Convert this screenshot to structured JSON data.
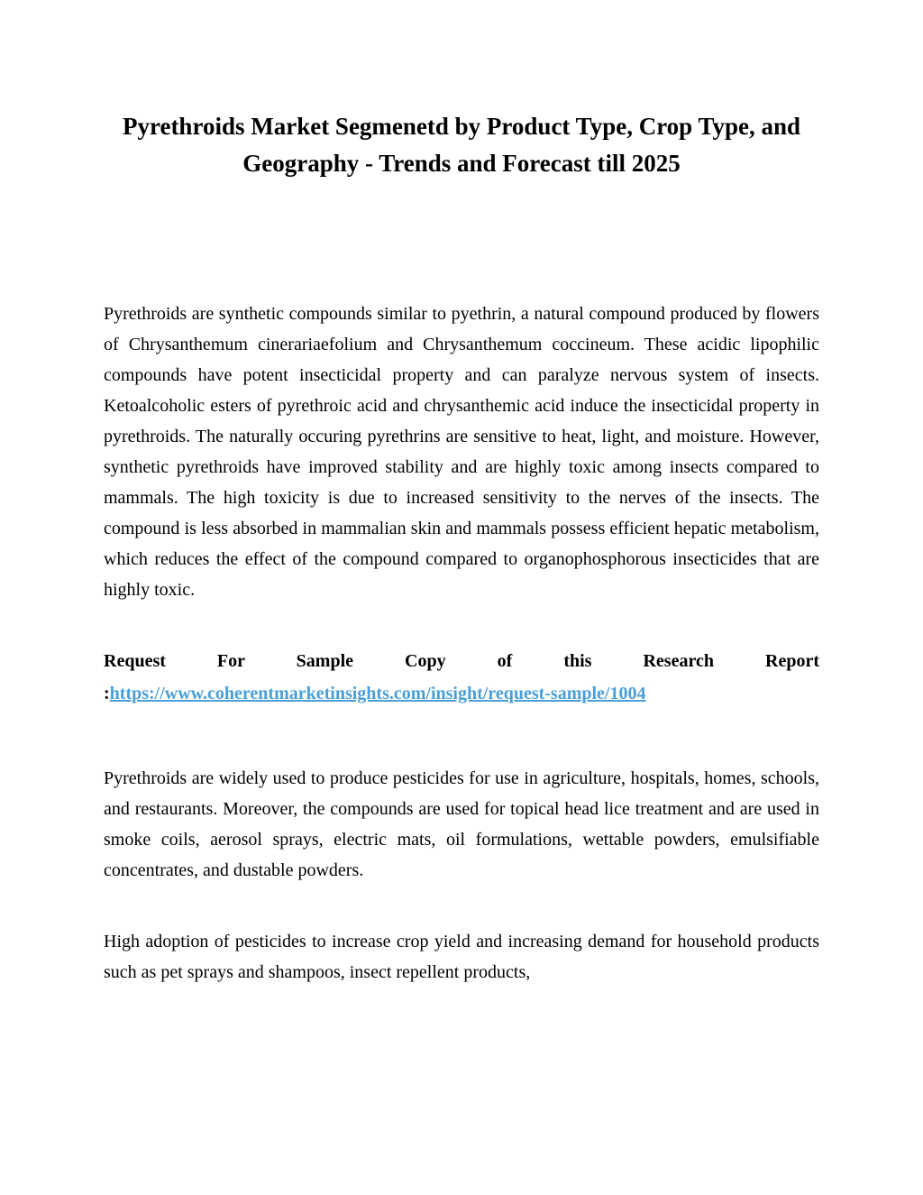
{
  "title": "Pyrethroids Market Segmenetd by Product Type, Crop Type, and Geography - Trends and Forecast till 2025",
  "paragraphs": {
    "intro": "Pyrethroids are synthetic compounds similar to pyethrin, a natural compound produced by flowers of Chrysanthemum cinerariaefolium and Chrysanthemum coccineum. These acidic lipophilic compounds have potent insecticidal property and can paralyze nervous system of insects. Ketoalcoholic esters of pyrethroic acid and chrysanthemic acid induce the insecticidal property in pyrethroids. The naturally occuring pyrethrins are sensitive to heat, light, and moisture. However, synthetic pyrethroids have improved stability and are highly toxic among insects compared to mammals. The high toxicity is due to increased sensitivity to the nerves of the insects. The compound is less absorbed in mammalian skin and mammals possess efficient hepatic metabolism, which reduces the effect of the compound compared to organophosphorous insecticides that are highly toxic.",
    "usage": "Pyrethroids are widely used to produce pesticides for use in agriculture, hospitals, homes, schools, and restaurants. Moreover, the compounds are used for topical head lice treatment and are used in smoke coils, aerosol sprays, electric mats, oil formulations, wettable powders, emulsifiable concentrates, and dustable powders.",
    "adoption": "High adoption of pesticides to increase crop yield and increasing demand for household products such as pet sprays and shampoos, insect repellent products,"
  },
  "request": {
    "label": "Request For Sample Copy of this Research Report",
    "colon": ":",
    "link_text": "https://www.coherentmarketinsights.com/insight/request-sample/1004"
  },
  "colors": {
    "text": "#000000",
    "link": "#4a9fd8",
    "background": "#ffffff"
  },
  "typography": {
    "title_fontsize": 27,
    "body_fontsize": 20,
    "font_family": "Georgia, Times New Roman, serif"
  }
}
